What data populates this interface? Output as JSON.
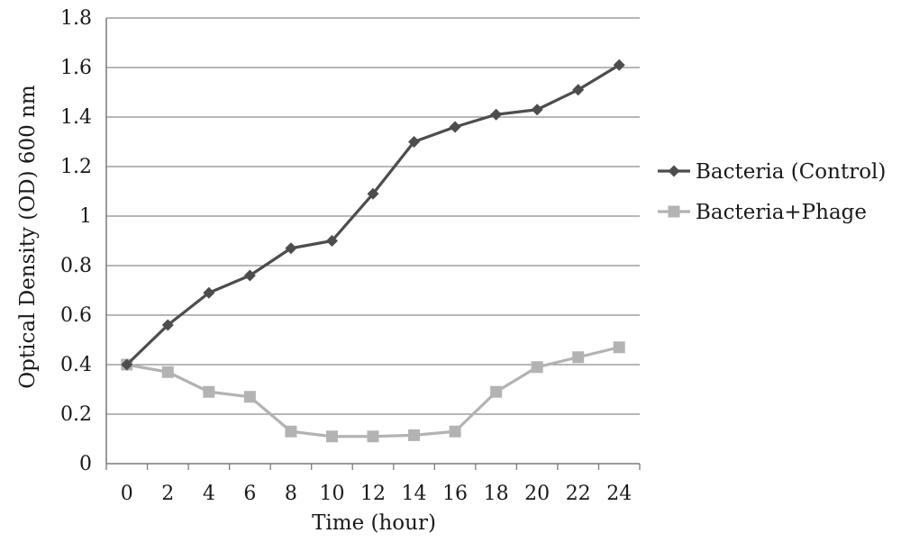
{
  "chart_data": {
    "type": "line",
    "title": "",
    "xlabel": "Time (hour)",
    "ylabel": "Optical Density (OD) 600 nm",
    "x": [
      0,
      2,
      4,
      6,
      8,
      10,
      12,
      14,
      16,
      18,
      20,
      22,
      24
    ],
    "x_ticks": [
      "0",
      "2",
      "4",
      "6",
      "8",
      "10",
      "12",
      "14",
      "16",
      "18",
      "20",
      "22",
      "24"
    ],
    "y_ticks": [
      "0",
      "0.2",
      "0.4",
      "0.6",
      "0.8",
      "1",
      "1.2",
      "1.4",
      "1.6",
      "1.8"
    ],
    "ylim": [
      0,
      1.8
    ],
    "grid": "horizontal",
    "legend_position": "right",
    "series": [
      {
        "name": "Bacteria (Control)",
        "marker": "diamond",
        "color": "#4d4d4d",
        "values": [
          0.4,
          0.56,
          0.69,
          0.76,
          0.87,
          0.9,
          1.09,
          1.3,
          1.36,
          1.41,
          1.43,
          1.51,
          1.61
        ]
      },
      {
        "name": "Bacteria+Phage",
        "marker": "square",
        "color": "#b3b3b3",
        "values": [
          0.4,
          0.37,
          0.29,
          0.27,
          0.13,
          0.11,
          0.11,
          0.115,
          0.13,
          0.29,
          0.39,
          0.43,
          0.47
        ]
      }
    ]
  }
}
